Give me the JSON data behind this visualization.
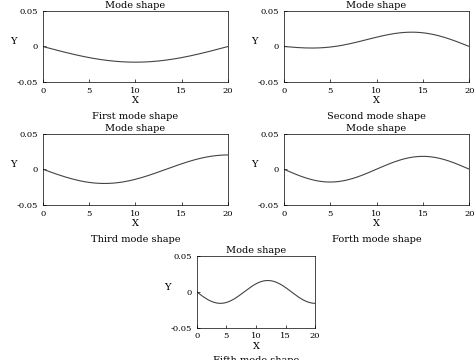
{
  "title": "Mode shape",
  "xlabel": "X",
  "ylabel": "Y",
  "xlim": [
    0,
    20
  ],
  "ylim": [
    -0.05,
    0.05
  ],
  "xticks": [
    0,
    5,
    10,
    15,
    20
  ],
  "yticks": [
    -0.05,
    0,
    0.05
  ],
  "line_color": "#444444",
  "line_width": 0.8,
  "background_color": "#ffffff",
  "subplot_bg": "#ffffff",
  "subtitles": [
    "First mode shape",
    "Second mode shape",
    "Third mode shape",
    "Forth mode shape",
    "Fifth mode shape"
  ],
  "figsize": [
    4.74,
    3.6
  ],
  "dpi": 100,
  "title_fontsize": 7,
  "label_fontsize": 7,
  "tick_fontsize": 6,
  "subtitle_fontsize": 7
}
